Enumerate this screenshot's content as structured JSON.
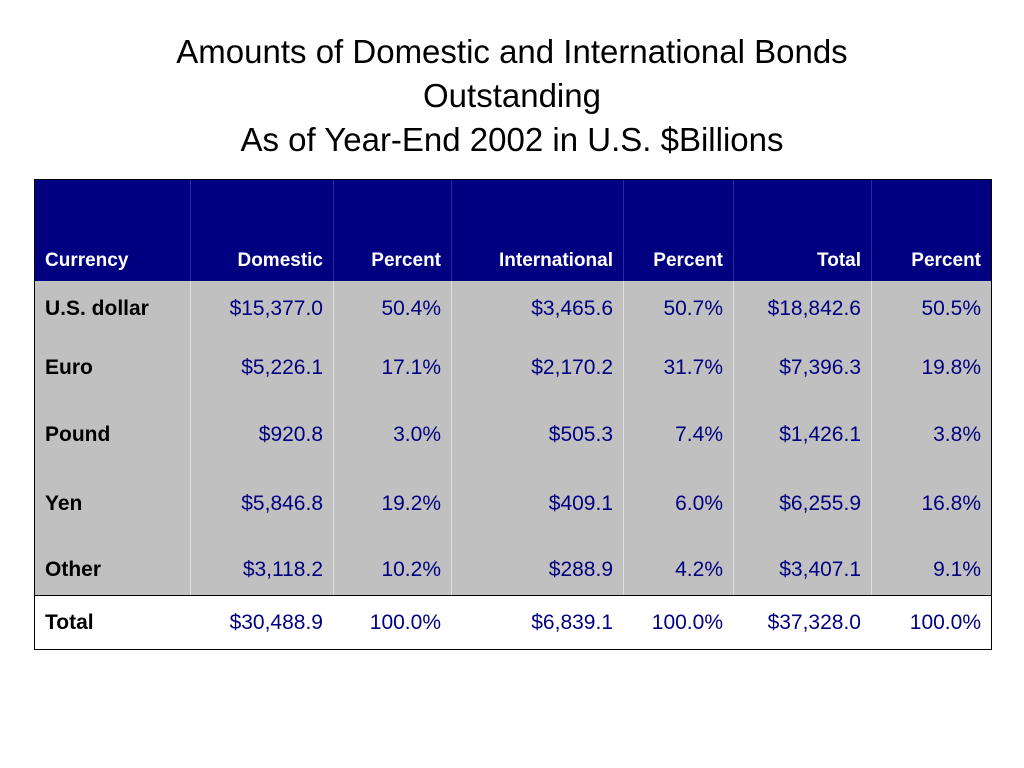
{
  "title": {
    "line1": "Amounts of Domestic and International Bonds",
    "line2": "Outstanding",
    "line3": "As of Year-End 2002 in U.S. $Billions"
  },
  "table": {
    "headers": [
      "Currency",
      "Domestic",
      "Percent",
      "International",
      "Percent",
      "Total",
      "Percent"
    ],
    "rows": [
      [
        "U.S. dollar",
        "$15,377.0",
        "50.4%",
        "$3,465.6",
        "50.7%",
        "$18,842.6",
        "50.5%"
      ],
      [
        "Euro",
        "$5,226.1",
        "17.1%",
        "$2,170.2",
        "31.7%",
        "$7,396.3",
        "19.8%"
      ],
      [
        "Pound",
        "$920.8",
        "3.0%",
        "$505.3",
        "7.4%",
        "$1,426.1",
        "3.8%"
      ],
      [
        "Yen",
        "$5,846.8",
        "19.2%",
        "$409.1",
        "6.0%",
        "$6,255.9",
        "16.8%"
      ],
      [
        "Other",
        "$3,118.2",
        "10.2%",
        "$288.9",
        "4.2%",
        "$3,407.1",
        "9.1%"
      ]
    ],
    "total": [
      "Total",
      "$30,488.9",
      "100.0%",
      "$6,839.1",
      "100.0%",
      "$37,328.0",
      "100.0%"
    ]
  },
  "colors": {
    "header_bg": "#000080",
    "body_bg": "#c0c0c0",
    "value_text": "#000080"
  }
}
